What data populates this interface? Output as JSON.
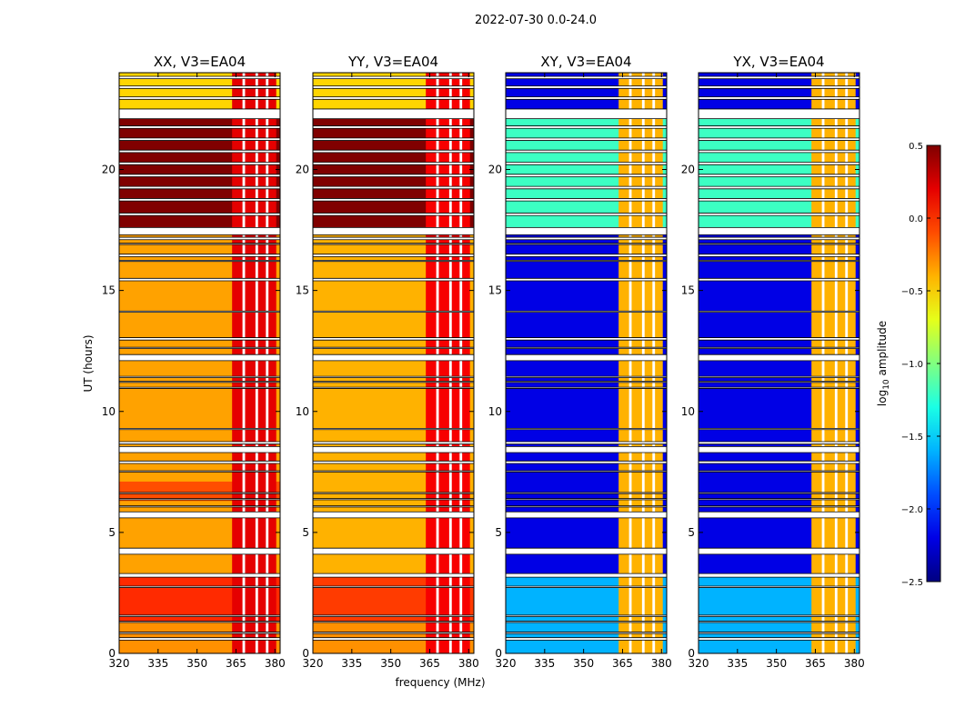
{
  "figure": {
    "suptitle": "2022-07-30 0.0-24.0"
  },
  "colors": {
    "colormap": "jet",
    "flagged": "#ffffff",
    "frame": "#000000",
    "hot_band": "#800000"
  },
  "chart_data": {
    "type": "heatmap",
    "title": "2022-07-30 0.0-24.0",
    "xlabel": "frequency (MHz)",
    "ylabel": "UT (hours)",
    "xlim": [
      320,
      382
    ],
    "ylim": [
      0,
      24
    ],
    "x_ticks": [
      "320",
      "335",
      "350",
      "365",
      "380"
    ],
    "y_ticks": [
      "0",
      "5",
      "10",
      "15",
      "20"
    ],
    "x_tick_values": [
      320,
      335,
      350,
      365,
      380
    ],
    "y_tick_values": [
      0,
      5,
      10,
      15,
      20
    ],
    "colorbar": {
      "label": "log10 amplitude",
      "label_base": "log",
      "label_sub": "10",
      "label_rest": " amplitude",
      "vmin": -2.5,
      "vmax": 0.5,
      "ticks": [
        "0.5",
        "0.0",
        "−0.5",
        "−1.0",
        "−1.5",
        "−2.0",
        "−2.5"
      ],
      "tick_values": [
        0.5,
        0.0,
        -0.5,
        -1.0,
        -1.5,
        -2.0,
        -2.5
      ]
    },
    "flagged_time_ranges_hours": [
      [
        0.55,
        0.65
      ],
      [
        0.82,
        0.88
      ],
      [
        1.28,
        1.33
      ],
      [
        1.52,
        1.58
      ],
      [
        2.72,
        2.78
      ],
      [
        3.15,
        3.3
      ],
      [
        4.1,
        4.35
      ],
      [
        5.6,
        5.85
      ],
      [
        6.05,
        6.1
      ],
      [
        6.35,
        6.4
      ],
      [
        6.6,
        6.65
      ],
      [
        7.5,
        7.55
      ],
      [
        7.85,
        7.95
      ],
      [
        8.3,
        8.55
      ],
      [
        8.65,
        8.75
      ],
      [
        9.25,
        9.3
      ],
      [
        10.95,
        11.0
      ],
      [
        11.2,
        11.25
      ],
      [
        11.4,
        11.45
      ],
      [
        12.1,
        12.35
      ],
      [
        12.6,
        12.65
      ],
      [
        12.95,
        13.05
      ],
      [
        14.1,
        14.15
      ],
      [
        15.4,
        15.5
      ],
      [
        16.2,
        16.25
      ],
      [
        16.4,
        16.5
      ],
      [
        16.9,
        16.95
      ],
      [
        17.1,
        17.2
      ],
      [
        17.3,
        17.6
      ],
      [
        18.1,
        18.2
      ],
      [
        18.7,
        18.8
      ],
      [
        19.2,
        19.3
      ],
      [
        19.7,
        19.8
      ],
      [
        20.2,
        20.3
      ],
      [
        20.7,
        20.8
      ],
      [
        21.2,
        21.3
      ],
      [
        21.7,
        21.8
      ],
      [
        22.1,
        22.5
      ],
      [
        22.9,
        23.0
      ],
      [
        23.35,
        23.45
      ],
      [
        23.75,
        23.85
      ]
    ],
    "strong_rfi_band_mhz": [
      363.5,
      380.5
    ],
    "dropped_channels_mhz": [
      [
        367.5,
        368.5
      ],
      [
        372.5,
        373.5
      ],
      [
        376.5,
        377.5
      ]
    ],
    "panels": [
      {
        "name": "XX, V3=EA04",
        "baseline_log_amp": -0.35,
        "rfi_log_amp": 0.2,
        "segments": [
          {
            "t": [
              0,
              3.2
            ],
            "log_amp": -0.3
          },
          {
            "t": [
              1.3,
              3.2
            ],
            "log_amp": 0.0
          },
          {
            "t": [
              6.3,
              7.1
            ],
            "log_amp": -0.1
          },
          {
            "t": [
              17.4,
              22.2
            ],
            "log_amp": 0.5
          },
          {
            "t": [
              22.5,
              24
            ],
            "log_amp": -0.5
          }
        ]
      },
      {
        "name": "YY, V3=EA04",
        "baseline_log_amp": -0.4,
        "rfi_log_amp": 0.15,
        "segments": [
          {
            "t": [
              0,
              3.2
            ],
            "log_amp": -0.3
          },
          {
            "t": [
              1.3,
              3.2
            ],
            "log_amp": -0.05
          },
          {
            "t": [
              17.4,
              22.2
            ],
            "log_amp": 0.5
          },
          {
            "t": [
              22.5,
              24
            ],
            "log_amp": -0.5
          }
        ]
      },
      {
        "name": "XY, V3=EA04",
        "baseline_log_amp": -2.2,
        "rfi_log_amp": -0.4,
        "segments": [
          {
            "t": [
              0,
              3.2
            ],
            "log_amp": -1.6
          },
          {
            "t": [
              17.4,
              22.2
            ],
            "log_amp": -1.2
          }
        ]
      },
      {
        "name": "YX, V3=EA04",
        "baseline_log_amp": -2.2,
        "rfi_log_amp": -0.4,
        "segments": [
          {
            "t": [
              0,
              3.2
            ],
            "log_amp": -1.6
          },
          {
            "t": [
              17.4,
              22.2
            ],
            "log_amp": -1.2
          }
        ]
      }
    ]
  }
}
